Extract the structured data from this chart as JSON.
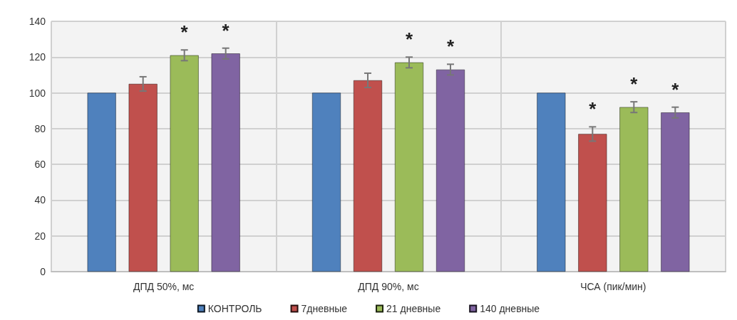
{
  "chart_data": {
    "type": "bar",
    "categories": [
      "ДПД 50%, мс",
      "ДПД 90%, мс",
      "ЧСА (пик/мин)"
    ],
    "series": [
      {
        "name": "КОНТРОЛЬ",
        "color": "#4f81bd",
        "values": [
          100,
          100,
          100
        ]
      },
      {
        "name": "7дневные",
        "color": "#c0504d",
        "values": [
          105,
          107,
          77
        ],
        "errors": [
          4,
          4,
          4
        ],
        "value_labels": [
          null,
          null,
          "*"
        ]
      },
      {
        "name": "21 дневные",
        "color": "#9bbb59",
        "values": [
          121,
          117,
          92
        ],
        "errors": [
          3,
          3,
          3
        ],
        "value_labels": [
          "*",
          "*",
          "*"
        ]
      },
      {
        "name": "140 дневные",
        "color": "#8064a2",
        "values": [
          122,
          113,
          89
        ],
        "errors": [
          3,
          3,
          3
        ],
        "value_labels": [
          "*",
          "*",
          "*"
        ]
      }
    ],
    "ylim": [
      0,
      140
    ],
    "yticks": [
      0,
      20,
      40,
      60,
      80,
      100,
      120,
      140
    ],
    "grid": true,
    "legend": "bottom"
  }
}
